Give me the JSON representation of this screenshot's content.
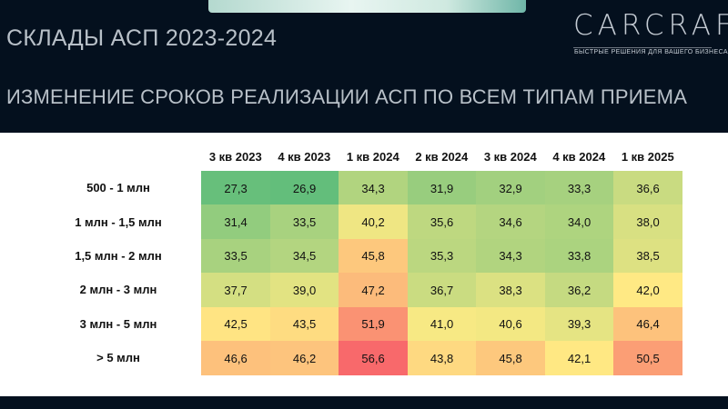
{
  "slide": {
    "title": "СКЛАДЫ АСП 2023-2024",
    "subtitle": "ИЗМЕНЕНИЕ СРОКОВ РЕАЛИЗАЦИИ АСП ПО ВСЕМ ТИПАМ ПРИЕМА"
  },
  "logo": {
    "name": "CARCRAFT",
    "tagline": "БЫСТРЫЕ РЕШЕНИЯ ДЛЯ ВАШЕГО БИЗНЕСА"
  },
  "chart_data": {
    "type": "heatmap",
    "columns": [
      "3 кв 2023",
      "4 кв 2023",
      "1 кв 2024",
      "2 кв 2024",
      "3 кв 2024",
      "4 кв 2024",
      "1 кв 2025"
    ],
    "rows": [
      "500 - 1 млн",
      "1 млн - 1,5 млн",
      "1,5 млн - 2 млн",
      "2 млн - 3 млн",
      "3 млн - 5 млн",
      "> 5 млн"
    ],
    "values": [
      [
        "27,3",
        "26,9",
        "34,3",
        "31,9",
        "32,9",
        "33,3",
        "36,6"
      ],
      [
        "31,4",
        "33,5",
        "40,2",
        "35,6",
        "34,6",
        "34,0",
        "38,0"
      ],
      [
        "33,5",
        "34,5",
        "45,8",
        "35,3",
        "34,3",
        "33,8",
        "38,5"
      ],
      [
        "37,7",
        "39,0",
        "47,2",
        "36,7",
        "38,3",
        "36,2",
        "42,0"
      ],
      [
        "42,5",
        "43,5",
        "51,9",
        "41,0",
        "40,6",
        "39,3",
        "46,4"
      ],
      [
        "46,6",
        "46,2",
        "56,6",
        "43,8",
        "45,8",
        "42,1",
        "50,5"
      ]
    ],
    "color_scale": {
      "low": "#63be7b",
      "mid": "#ffeb84",
      "high": "#f8696b"
    }
  }
}
